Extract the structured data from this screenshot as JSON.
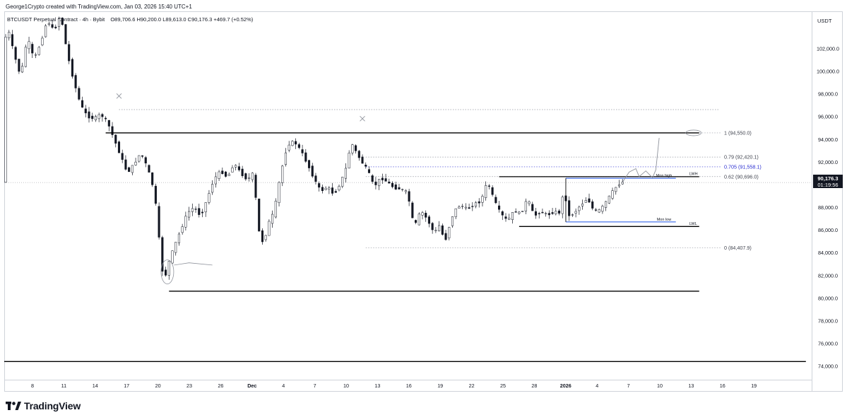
{
  "header": {
    "credit": "George1Crypto created with TradingView.com, Jan 03, 2026 15:40 UTC+1",
    "symbol": "BTCUSDT Perpetual Contract · 4h · Bybit",
    "open": "O89,706.6",
    "high": "H90,200.0",
    "low": "L89,613.0",
    "close": "C90,176.3",
    "change": "+469.7 (+0.52%)"
  },
  "axis": {
    "currency": "USDT"
  },
  "price_tag": {
    "price": "90,176.3",
    "countdown": "01:19:56"
  },
  "brand": {
    "name": "TradingView"
  },
  "colors": {
    "up_candle": "#131722",
    "down_candle": "#131722",
    "fib_blue": "#2a2ed1",
    "level_line": "#000000",
    "dotted_line": "#9598a1",
    "month_box": "#1e53e5"
  },
  "chart_data": {
    "type": "candlestick",
    "symbol": "BTCUSDT",
    "timeframe": "4h",
    "ylim": [
      72800,
      105200
    ],
    "y_ticks": [
      "74,000.0",
      "76,000.0",
      "78,000.0",
      "80,000.0",
      "82,000.0",
      "84,000.0",
      "86,000.0",
      "88,000.0",
      "90,000.0",
      "92,000.0",
      "94,000.0",
      "96,000.0",
      "98,000.0",
      "100,000.0",
      "102,000.0"
    ],
    "x_ticks": [
      "8",
      "11",
      "14",
      "17",
      "20",
      "23",
      "26",
      "Dec",
      "4",
      "7",
      "10",
      "13",
      "16",
      "19",
      "22",
      "25",
      "28",
      "2026",
      "4",
      "7",
      "10",
      "13",
      "16",
      "19"
    ],
    "x_ticks_bold": [
      "Dec",
      "2026"
    ],
    "price_path": [
      [
        0,
        102000
      ],
      [
        1,
        104000
      ],
      [
        3,
        101500
      ],
      [
        5,
        99500
      ],
      [
        7,
        103000
      ],
      [
        9,
        101000
      ],
      [
        11,
        102500
      ],
      [
        13,
        104500
      ],
      [
        15,
        103500
      ],
      [
        17,
        105000
      ],
      [
        19,
        101500
      ],
      [
        21,
        99000
      ],
      [
        23,
        97000
      ],
      [
        25,
        96000
      ],
      [
        27,
        95800
      ],
      [
        29,
        96200
      ],
      [
        31,
        95500
      ],
      [
        33,
        94000
      ],
      [
        35,
        92500
      ],
      [
        37,
        91000
      ],
      [
        39,
        91800
      ],
      [
        41,
        92800
      ],
      [
        43,
        91500
      ],
      [
        45,
        89500
      ],
      [
        46,
        87000
      ],
      [
        47,
        83500
      ],
      [
        48,
        81300
      ],
      [
        49,
        82800
      ],
      [
        51,
        84500
      ],
      [
        53,
        86000
      ],
      [
        55,
        87500
      ],
      [
        57,
        88000
      ],
      [
        59,
        87200
      ],
      [
        61,
        88800
      ],
      [
        63,
        90500
      ],
      [
        65,
        91200
      ],
      [
        67,
        90600
      ],
      [
        69,
        91900
      ],
      [
        71,
        91000
      ],
      [
        73,
        90400
      ],
      [
        75,
        91100
      ],
      [
        76,
        86500
      ],
      [
        77,
        85200
      ],
      [
        78,
        84800
      ],
      [
        79,
        86400
      ],
      [
        81,
        87600
      ],
      [
        83,
        91000
      ],
      [
        85,
        93500
      ],
      [
        87,
        93800
      ],
      [
        89,
        93000
      ],
      [
        91,
        91800
      ],
      [
        93,
        90500
      ],
      [
        95,
        89400
      ],
      [
        97,
        89800
      ],
      [
        99,
        89100
      ],
      [
        101,
        90200
      ],
      [
        103,
        91800
      ],
      [
        104,
        93800
      ],
      [
        105,
        93200
      ],
      [
        107,
        92100
      ],
      [
        109,
        91300
      ],
      [
        111,
        89800
      ],
      [
        113,
        90600
      ],
      [
        115,
        90200
      ],
      [
        117,
        89700
      ],
      [
        119,
        89600
      ],
      [
        121,
        89300
      ],
      [
        123,
        86200
      ],
      [
        125,
        87700
      ],
      [
        127,
        86900
      ],
      [
        129,
        85700
      ],
      [
        131,
        86600
      ],
      [
        132,
        84600
      ],
      [
        133,
        85800
      ],
      [
        135,
        87700
      ],
      [
        137,
        88200
      ],
      [
        139,
        87800
      ],
      [
        141,
        88300
      ],
      [
        143,
        88500
      ],
      [
        145,
        90300
      ],
      [
        147,
        88600
      ],
      [
        149,
        87400
      ],
      [
        151,
        86800
      ],
      [
        153,
        87700
      ],
      [
        155,
        87400
      ],
      [
        157,
        88800
      ],
      [
        159,
        87200
      ],
      [
        161,
        87600
      ],
      [
        163,
        87300
      ],
      [
        165,
        87600
      ],
      [
        167,
        87500
      ],
      [
        168,
        90200
      ],
      [
        169,
        87100
      ],
      [
        171,
        87500
      ],
      [
        173,
        88200
      ],
      [
        175,
        88800
      ],
      [
        177,
        87600
      ],
      [
        179,
        87800
      ],
      [
        181,
        88700
      ],
      [
        183,
        89600
      ],
      [
        185,
        90200
      ]
    ],
    "levels": [
      {
        "name": "upper-range",
        "price": 94550,
        "from": 30,
        "to": 208
      },
      {
        "name": "lower-range",
        "price": 80600,
        "from": 49,
        "to": 208
      },
      {
        "name": "bottom-line",
        "price": 74400,
        "from": -2,
        "to": 240
      },
      {
        "name": "lwh",
        "price": 90690,
        "from": 148,
        "to": 208,
        "label": "LWH"
      },
      {
        "name": "lwl",
        "price": 86300,
        "from": 154,
        "to": 208,
        "label": "LWL"
      }
    ],
    "month_box": {
      "high": 90550,
      "low": 86700,
      "from": 168,
      "to": 201,
      "high_label": "Mon high",
      "low_label": "Mon low"
    },
    "fib_levels": [
      {
        "ratio_label": "1 (94,550.0)",
        "price": 94550,
        "style": "plain"
      },
      {
        "ratio_label": "0.79 (92,420.1)",
        "price": 92420,
        "style": "plain"
      },
      {
        "ratio_label": "0.705 (91,558.1)",
        "price": 91558,
        "style": "blue"
      },
      {
        "ratio_label": "0.62 (90,696.0)",
        "price": 90696,
        "style": "plain"
      },
      {
        "ratio_label": "0 (84,407.9)",
        "price": 84408,
        "style": "plain"
      }
    ],
    "dotted_lines": [
      {
        "price": 96600,
        "from": 34,
        "to": 214
      }
    ],
    "projection_path": [
      [
        185,
        90200
      ],
      [
        187,
        91100
      ],
      [
        189,
        91400
      ],
      [
        190,
        90700
      ],
      [
        192,
        91200
      ],
      [
        194,
        90600
      ],
      [
        195,
        91300
      ],
      [
        196,
        94100
      ]
    ],
    "x_marks": [
      [
        34,
        97800
      ],
      [
        107,
        95800
      ]
    ],
    "last_price": 90176.3
  }
}
